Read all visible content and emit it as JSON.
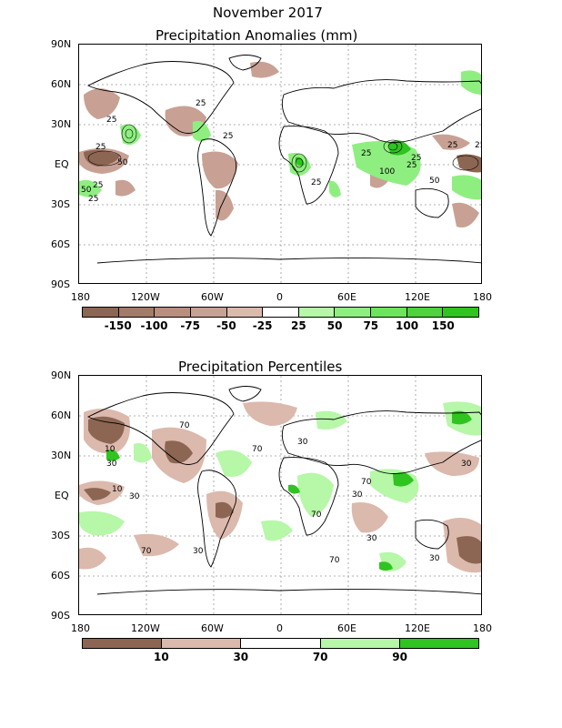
{
  "header": {
    "title": "November 2017"
  },
  "panel1": {
    "title": "Precipitation Anomalies (mm)",
    "lat_labels": [
      "90N",
      "60N",
      "30N",
      "EQ",
      "30S",
      "60S",
      "90S"
    ],
    "lon_labels": [
      "180",
      "120W",
      "60W",
      "0",
      "60E",
      "120E",
      "180"
    ],
    "colorbar": {
      "colors": [
        "#8c6652",
        "#a47a68",
        "#b98e7f",
        "#c8a194",
        "#dcb9ad",
        "#ffffff",
        "#b6f7a8",
        "#8eef80",
        "#6ee45e",
        "#4ed23e",
        "#2fc41f"
      ],
      "labels": [
        "-150",
        "-100",
        "-75",
        "-50",
        "-25",
        "25",
        "50",
        "75",
        "100",
        "150"
      ]
    },
    "contour_labels": [
      "25",
      "25",
      "25",
      "25",
      "25",
      "50",
      "25",
      "50",
      "25",
      "25",
      "25",
      "25",
      "25",
      "100",
      "25",
      "50"
    ]
  },
  "panel2": {
    "title": "Precipitation Percentiles",
    "lat_labels": [
      "90N",
      "60N",
      "30N",
      "EQ",
      "30S",
      "60S",
      "90S"
    ],
    "lon_labels": [
      "180",
      "120W",
      "60W",
      "0",
      "60E",
      "120E",
      "180"
    ],
    "colorbar": {
      "colors": [
        "#8c6652",
        "#dcb9ad",
        "#ffffff",
        "#b6f7a8",
        "#2fc41f"
      ],
      "labels": [
        "10",
        "30",
        "70",
        "90"
      ]
    },
    "contour_labels": [
      "10",
      "30",
      "10",
      "30",
      "70",
      "30",
      "70",
      "30",
      "70",
      "70",
      "30",
      "30",
      "70",
      "30",
      "70",
      "30"
    ]
  }
}
